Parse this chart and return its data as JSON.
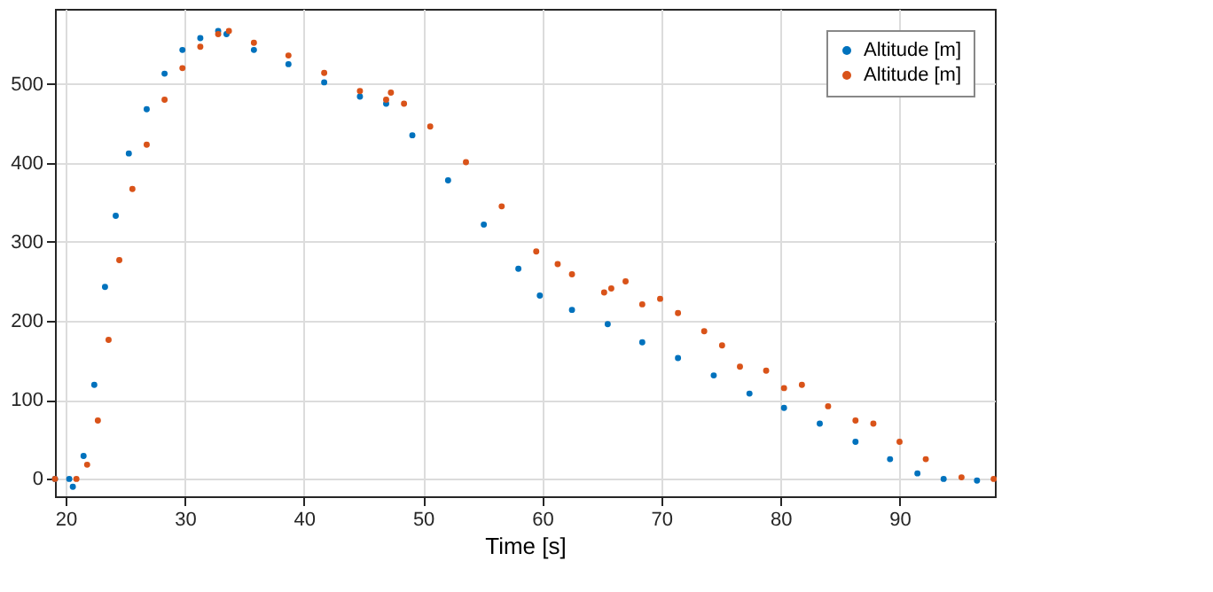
{
  "chart_data": {
    "type": "scatter",
    "xlabel": "Time [s]",
    "xlim": [
      19.1,
      98
    ],
    "ylim": [
      -22,
      595
    ],
    "xticks": [
      20,
      30,
      40,
      50,
      60,
      70,
      80,
      90
    ],
    "yticks": [
      0,
      100,
      200,
      300,
      400,
      500
    ],
    "grid": true,
    "legend": "top right",
    "marker": "circle",
    "series": [
      {
        "name": "Altitude [m]",
        "color": "#0072bd",
        "x": [
          19.1,
          20.3,
          20.6,
          21.5,
          22.4,
          23.3,
          24.2,
          25.3,
          26.8,
          28.3,
          29.8,
          31.3,
          32.8,
          33.5,
          35.8,
          38.7,
          41.7,
          44.7,
          46.9,
          49.1,
          52.1,
          55.1,
          58.0,
          59.8,
          62.5,
          65.5,
          68.4,
          71.4,
          74.4,
          77.4,
          80.3,
          83.3,
          86.3,
          89.2,
          91.5,
          93.7,
          96.5
        ],
        "values": [
          0,
          0,
          -10,
          29,
          119,
          243,
          333,
          412,
          468,
          513,
          543,
          558,
          567,
          563,
          543,
          525,
          502,
          484,
          475,
          435,
          378,
          322,
          266,
          232,
          214,
          196,
          173,
          153,
          131,
          108,
          90,
          70,
          47,
          25,
          7,
          0,
          -2
        ]
      },
      {
        "name": "Altitude [m]",
        "color": "#d95319",
        "x": [
          19.1,
          20.9,
          21.8,
          22.7,
          23.6,
          24.5,
          25.6,
          26.8,
          28.3,
          29.8,
          31.3,
          32.8,
          33.7,
          35.8,
          38.7,
          41.7,
          44.7,
          46.9,
          47.3,
          48.4,
          50.6,
          53.6,
          56.6,
          59.5,
          61.3,
          62.5,
          65.2,
          65.8,
          67.0,
          68.4,
          69.9,
          71.4,
          73.6,
          75.1,
          76.6,
          78.8,
          80.3,
          81.8,
          84.0,
          86.3,
          87.8,
          90.0,
          92.2,
          95.2,
          97.9
        ],
        "values": [
          0,
          0,
          18,
          74,
          176,
          277,
          367,
          423,
          480,
          520,
          547,
          563,
          567,
          552,
          536,
          514,
          491,
          480,
          489,
          475,
          446,
          401,
          345,
          288,
          272,
          259,
          236,
          241,
          250,
          221,
          228,
          210,
          187,
          169,
          142,
          137,
          115,
          119,
          92,
          74,
          70,
          47,
          25,
          2,
          0
        ]
      }
    ]
  }
}
